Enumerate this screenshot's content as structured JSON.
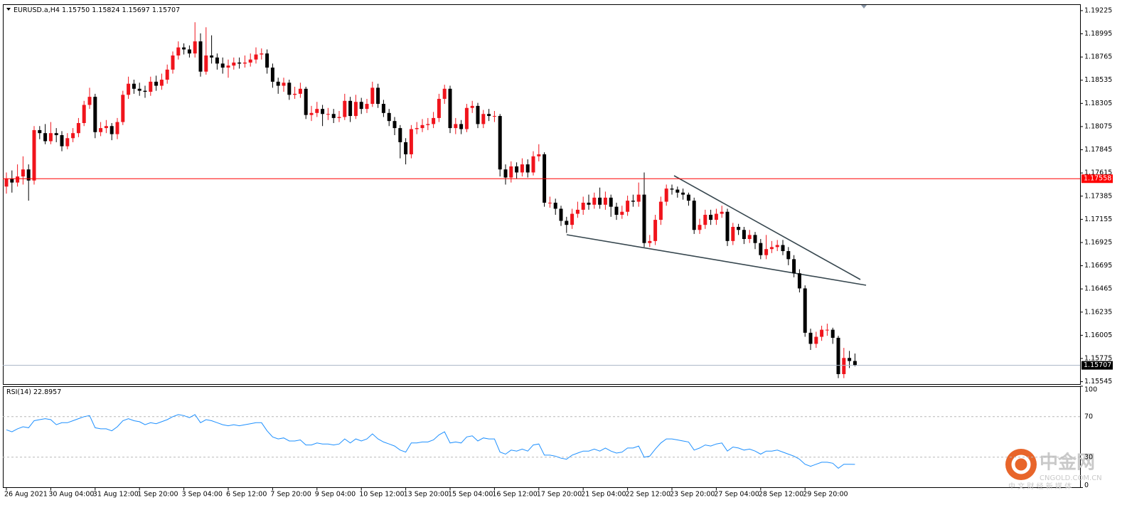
{
  "header": {
    "symbol": "EURUSD.a,H4",
    "quote": "1.15750 1.15824 1.15697 1.15707"
  },
  "watermark": {
    "brand": "中金网",
    "site": "CNGOLD.COM.CN",
    "slogan": "中 文 财 经 新 媒 体"
  },
  "chart_data": [
    {
      "type": "candlestick",
      "categories": [
        "26 Aug 2021",
        null,
        null,
        null,
        null,
        null,
        null,
        null,
        "30 Aug 04:00",
        null,
        null,
        null,
        null,
        null,
        null,
        null,
        "31 Aug 12:00",
        null,
        null,
        null,
        null,
        null,
        null,
        null,
        "1 Sep 20:00",
        null,
        null,
        null,
        null,
        null,
        null,
        null,
        "3 Sep 04:00",
        null,
        null,
        null,
        null,
        null,
        null,
        null,
        "6 Sep 12:00",
        null,
        null,
        null,
        null,
        null,
        null,
        null,
        "7 Sep 20:00",
        null,
        null,
        null,
        null,
        null,
        null,
        null,
        "9 Sep 04:00",
        null,
        null,
        null,
        null,
        null,
        null,
        null,
        "10 Sep 12:00",
        null,
        null,
        null,
        null,
        null,
        null,
        null,
        "13 Sep 20:00",
        null,
        null,
        null,
        null,
        null,
        null,
        null,
        "15 Sep 04:00",
        null,
        null,
        null,
        null,
        null,
        null,
        null,
        "16 Sep 12:00",
        null,
        null,
        null,
        null,
        null,
        null,
        null,
        "17 Sep 20:00",
        null,
        null,
        null,
        null,
        null,
        null,
        null,
        "21 Sep 04:00",
        null,
        null,
        null,
        null,
        null,
        null,
        null,
        "22 Sep 12:00",
        null,
        null,
        null,
        null,
        null,
        null,
        null,
        "23 Sep 20:00",
        null,
        null,
        null,
        null,
        null,
        null,
        null,
        "27 Sep 04:00",
        null,
        null,
        null,
        null,
        null,
        null,
        null,
        "28 Sep 12:00",
        null,
        null,
        null,
        null,
        null,
        null,
        null,
        "29 Sep 20:00",
        null,
        null,
        null,
        null,
        null,
        null,
        null,
        null,
        null
      ],
      "open": [
        1.1748,
        1.1756,
        1.1752,
        1.1758,
        1.1765,
        1.1754,
        1.1804,
        1.1801,
        1.1793,
        1.1801,
        1.1799,
        1.1788,
        1.1796,
        1.1801,
        1.1811,
        1.1829,
        1.1837,
        1.1802,
        1.1806,
        1.1808,
        1.18,
        1.1812,
        1.1839,
        1.185,
        1.1845,
        1.1843,
        1.1842,
        1.1852,
        1.1848,
        1.1854,
        1.1864,
        1.1878,
        1.1886,
        1.1884,
        1.188,
        1.1892,
        1.1862,
        1.1878,
        1.1876,
        1.187,
        1.1866,
        1.1868,
        1.1871,
        1.187,
        1.1871,
        1.1874,
        1.1879,
        1.188,
        1.1866,
        1.1852,
        1.1848,
        1.1851,
        1.1839,
        1.184,
        1.1845,
        1.1819,
        1.1821,
        1.1825,
        1.182,
        1.182,
        1.1816,
        1.1817,
        1.1833,
        1.1818,
        1.1832,
        1.1825,
        1.183,
        1.1846,
        1.183,
        1.1821,
        1.1813,
        1.1806,
        1.1792,
        1.178,
        1.1805,
        1.1806,
        1.1809,
        1.181,
        1.1816,
        1.1835,
        1.1845,
        1.1806,
        1.181,
        1.1805,
        1.1826,
        1.1828,
        1.181,
        1.182,
        1.1818,
        1.1818,
        1.1765,
        1.1757,
        1.1768,
        1.1762,
        1.177,
        1.1762,
        1.1778,
        1.178,
        1.1732,
        1.1732,
        1.1726,
        1.1714,
        1.171,
        1.1721,
        1.1725,
        1.1732,
        1.173,
        1.1737,
        1.173,
        1.1737,
        1.1728,
        1.172,
        1.1723,
        1.1734,
        1.1733,
        1.174,
        1.1692,
        1.1694,
        1.1715,
        1.1733,
        1.1746,
        1.1745,
        1.1742,
        1.174,
        1.1734,
        1.1705,
        1.171,
        1.172,
        1.1715,
        1.1721,
        1.1723,
        1.1694,
        1.1708,
        1.1705,
        1.1696,
        1.17,
        1.1692,
        1.168,
        1.1686,
        1.1688,
        1.169,
        1.1684,
        1.1676,
        1.1662,
        1.1647,
        1.1603,
        1.1592,
        1.1599,
        1.1606,
        1.1606,
        1.1598,
        1.1562,
        1.1578,
        1.1575
      ],
      "high": [
        1.1762,
        1.1764,
        1.177,
        1.1778,
        1.177,
        1.1808,
        1.1808,
        1.181,
        1.1812,
        1.1806,
        1.1803,
        1.1801,
        1.1806,
        1.1816,
        1.1833,
        1.1846,
        1.184,
        1.1812,
        1.1814,
        1.1811,
        1.1816,
        1.1843,
        1.1857,
        1.1854,
        1.1851,
        1.1848,
        1.1857,
        1.1858,
        1.186,
        1.1869,
        1.1882,
        1.1892,
        1.189,
        1.1888,
        1.1911,
        1.19,
        1.1906,
        1.1898,
        1.188,
        1.1876,
        1.1874,
        1.1876,
        1.1876,
        1.1878,
        1.188,
        1.1886,
        1.1885,
        1.1884,
        1.187,
        1.1856,
        1.1856,
        1.1854,
        1.1847,
        1.1851,
        1.1847,
        1.1828,
        1.1832,
        1.1829,
        1.1826,
        1.1825,
        1.1823,
        1.184,
        1.1837,
        1.1839,
        1.1836,
        1.1835,
        1.1852,
        1.185,
        1.1834,
        1.1825,
        1.1817,
        1.1809,
        1.1796,
        1.1809,
        1.1812,
        1.1815,
        1.1816,
        1.1822,
        1.184,
        1.1849,
        1.1848,
        1.1816,
        1.1814,
        1.183,
        1.1833,
        1.1831,
        1.1824,
        1.1825,
        1.1823,
        1.182,
        1.177,
        1.1773,
        1.1772,
        1.1776,
        1.1775,
        1.1783,
        1.179,
        1.1782,
        1.1738,
        1.1736,
        1.1729,
        1.1718,
        1.1726,
        1.1733,
        1.1738,
        1.174,
        1.1742,
        1.1747,
        1.1743,
        1.174,
        1.1732,
        1.1729,
        1.1739,
        1.174,
        1.1752,
        1.1762,
        1.17,
        1.172,
        1.1738,
        1.175,
        1.175,
        1.1748,
        1.1746,
        1.1742,
        1.1737,
        1.1716,
        1.1725,
        1.1725,
        1.1726,
        1.1729,
        1.1726,
        1.1712,
        1.1711,
        1.1708,
        1.1705,
        1.1703,
        1.1696,
        1.17,
        1.1694,
        1.1695,
        1.1695,
        1.1688,
        1.168,
        1.1666,
        1.165,
        1.1607,
        1.1604,
        1.161,
        1.1612,
        1.1608,
        1.16,
        1.1588,
        1.1585,
        1.15824
      ],
      "low": [
        1.1741,
        1.1742,
        1.1748,
        1.175,
        1.1734,
        1.175,
        1.1795,
        1.179,
        1.179,
        1.1792,
        1.1783,
        1.1785,
        1.1792,
        1.1797,
        1.1808,
        1.1825,
        1.1796,
        1.1798,
        1.1801,
        1.1794,
        1.1795,
        1.1809,
        1.1835,
        1.184,
        1.1838,
        1.1836,
        1.1838,
        1.1843,
        1.1844,
        1.185,
        1.186,
        1.1874,
        1.1879,
        1.1876,
        1.1876,
        1.1857,
        1.1859,
        1.187,
        1.1864,
        1.186,
        1.1856,
        1.1864,
        1.1865,
        1.1866,
        1.1867,
        1.187,
        1.1874,
        1.186,
        1.1846,
        1.184,
        1.1842,
        1.1834,
        1.1835,
        1.1836,
        1.1815,
        1.1813,
        1.1817,
        1.1808,
        1.1814,
        1.1811,
        1.1812,
        1.1814,
        1.1812,
        1.1815,
        1.182,
        1.1821,
        1.1827,
        1.1826,
        1.1817,
        1.1808,
        1.1799,
        1.1776,
        1.177,
        1.1776,
        1.18,
        1.1802,
        1.1804,
        1.1806,
        1.1812,
        1.183,
        1.1801,
        1.18,
        1.18,
        1.1802,
        1.1821,
        1.1806,
        1.1806,
        1.1813,
        1.1812,
        1.1758,
        1.175,
        1.1752,
        1.1756,
        1.1758,
        1.1757,
        1.1759,
        1.1773,
        1.1728,
        1.1727,
        1.172,
        1.1709,
        1.1702,
        1.1706,
        1.1717,
        1.172,
        1.1725,
        1.1726,
        1.1726,
        1.1725,
        1.1718,
        1.1715,
        1.1716,
        1.1719,
        1.1728,
        1.1728,
        1.1688,
        1.1688,
        1.169,
        1.171,
        1.1729,
        1.174,
        1.1737,
        1.1735,
        1.1729,
        1.1701,
        1.1701,
        1.1706,
        1.171,
        1.171,
        1.1717,
        1.1689,
        1.169,
        1.17,
        1.1691,
        1.1692,
        1.1686,
        1.1676,
        1.1676,
        1.1682,
        1.1684,
        1.168,
        1.167,
        1.1658,
        1.1643,
        1.1599,
        1.1586,
        1.1588,
        1.1595,
        1.16,
        1.1592,
        1.1558,
        1.1558,
        1.1568,
        1.15697
      ],
      "close": [
        1.1756,
        1.1752,
        1.1758,
        1.1765,
        1.1754,
        1.1804,
        1.1801,
        1.1793,
        1.1801,
        1.1799,
        1.1788,
        1.1796,
        1.1801,
        1.1811,
        1.1829,
        1.1837,
        1.1802,
        1.1806,
        1.1808,
        1.18,
        1.1812,
        1.1839,
        1.185,
        1.1845,
        1.1843,
        1.1842,
        1.1852,
        1.1848,
        1.1854,
        1.1864,
        1.1878,
        1.1886,
        1.1884,
        1.188,
        1.1892,
        1.1862,
        1.1878,
        1.1876,
        1.187,
        1.1866,
        1.1868,
        1.1871,
        1.187,
        1.1871,
        1.1874,
        1.1879,
        1.188,
        1.1866,
        1.1852,
        1.1848,
        1.1851,
        1.1839,
        1.184,
        1.1845,
        1.1819,
        1.1821,
        1.1825,
        1.182,
        1.182,
        1.1816,
        1.1817,
        1.1833,
        1.1818,
        1.1832,
        1.1825,
        1.183,
        1.1846,
        1.183,
        1.1821,
        1.1813,
        1.1806,
        1.1792,
        1.178,
        1.1805,
        1.1806,
        1.1809,
        1.181,
        1.1816,
        1.1835,
        1.1845,
        1.1806,
        1.181,
        1.1805,
        1.1826,
        1.1828,
        1.181,
        1.182,
        1.1818,
        1.1818,
        1.1765,
        1.1757,
        1.1768,
        1.1762,
        1.177,
        1.1762,
        1.1778,
        1.178,
        1.1732,
        1.1732,
        1.1726,
        1.1714,
        1.171,
        1.1721,
        1.1725,
        1.1732,
        1.173,
        1.1737,
        1.173,
        1.1737,
        1.1728,
        1.172,
        1.1723,
        1.1734,
        1.1733,
        1.174,
        1.1692,
        1.1694,
        1.1715,
        1.1733,
        1.1746,
        1.1745,
        1.1742,
        1.174,
        1.1734,
        1.1705,
        1.171,
        1.172,
        1.1715,
        1.1721,
        1.1723,
        1.1694,
        1.1708,
        1.1705,
        1.1696,
        1.17,
        1.1692,
        1.168,
        1.1686,
        1.1688,
        1.169,
        1.1684,
        1.1676,
        1.1662,
        1.1647,
        1.1603,
        1.1592,
        1.1599,
        1.1606,
        1.1606,
        1.1598,
        1.1562,
        1.1578,
        1.1575,
        1.15707
      ],
      "up_color": "#f0141c",
      "down_color": "#000000",
      "ylim": [
        1.15521,
        1.19281
      ],
      "yticks": [
        1.19225,
        1.18995,
        1.18765,
        1.18535,
        1.18305,
        1.18075,
        1.17845,
        1.17615,
        1.17385,
        1.17155,
        1.16925,
        1.16695,
        1.16465,
        1.16235,
        1.16005,
        1.15775,
        1.15545
      ],
      "hlines": [
        {
          "value": 1.17558,
          "color": "#ff0000",
          "box": "#ff0000"
        },
        {
          "value": 1.15707,
          "color": "#a8b4c4",
          "box": "#000000"
        }
      ]
    },
    {
      "type": "line",
      "name": "RSI(14)",
      "color": "#1e90ff",
      "values": [
        57,
        55,
        58,
        60,
        59,
        66,
        67,
        68,
        67,
        62,
        64,
        64,
        66,
        68,
        70,
        71,
        59,
        58,
        58,
        56,
        60,
        66,
        68,
        66,
        65,
        62,
        64,
        63,
        65,
        67,
        70,
        72,
        71,
        69,
        72,
        64,
        67,
        66,
        64,
        62,
        61,
        62,
        61,
        62,
        63,
        64,
        64,
        56,
        50,
        48,
        49,
        46,
        46,
        47,
        42,
        42,
        44,
        43,
        43,
        42,
        43,
        48,
        44,
        48,
        46,
        48,
        53,
        48,
        45,
        43,
        41,
        37,
        35,
        44,
        44,
        45,
        45,
        47,
        52,
        55,
        44,
        45,
        44,
        50,
        51,
        46,
        49,
        48,
        48,
        35,
        33,
        37,
        36,
        38,
        36,
        42,
        43,
        32,
        32,
        31,
        29,
        28,
        32,
        34,
        36,
        36,
        38,
        36,
        39,
        36,
        34,
        35,
        39,
        39,
        41,
        30,
        31,
        38,
        44,
        48,
        48,
        47,
        46,
        45,
        37,
        39,
        42,
        41,
        43,
        44,
        36,
        40,
        39,
        37,
        38,
        36,
        33,
        36,
        36,
        37,
        35,
        33,
        31,
        28,
        23,
        21,
        23,
        25,
        25,
        24,
        19,
        23,
        23,
        22.8957
      ],
      "ylim": [
        0,
        100
      ],
      "yticks": [
        100,
        70,
        30,
        0
      ]
    }
  ]
}
